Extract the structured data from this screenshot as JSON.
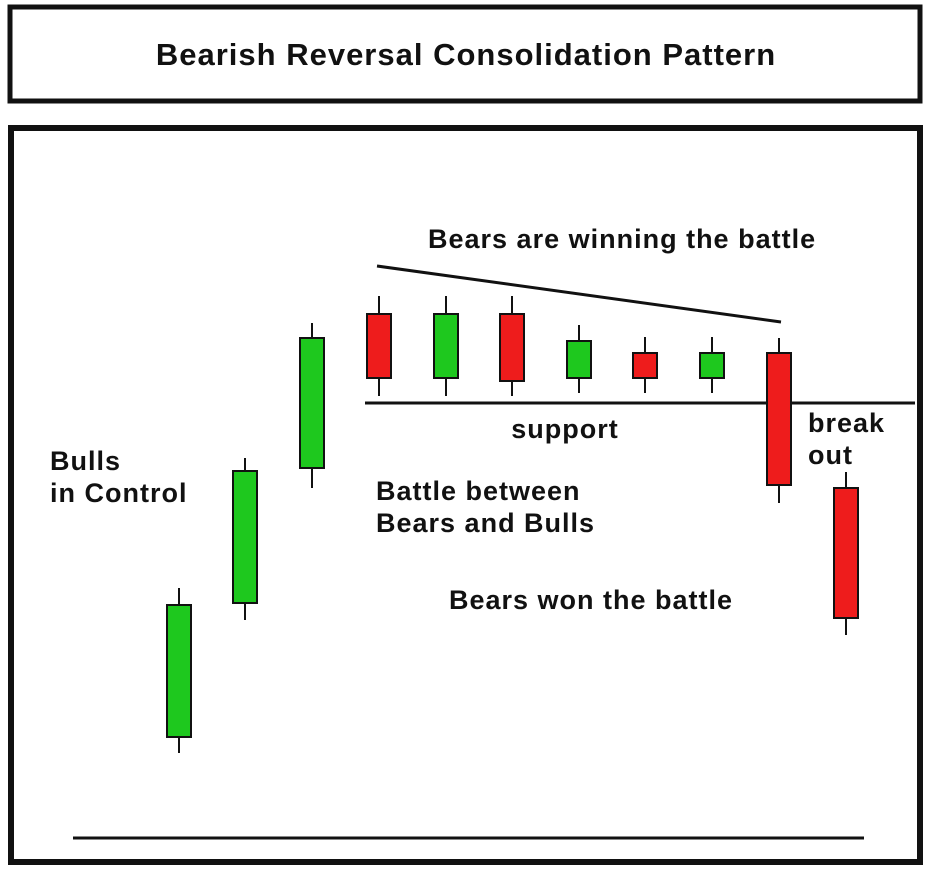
{
  "title": "Bearish Reversal Consolidation Pattern",
  "annotations": {
    "trend": "Bears are winning the battle",
    "support": "support",
    "breakout": [
      "break",
      "out"
    ],
    "bulls": [
      "Bulls",
      "in Control"
    ],
    "battle": [
      "Battle between",
      "Bears and Bulls"
    ],
    "won": "Bears won the battle"
  }
}
